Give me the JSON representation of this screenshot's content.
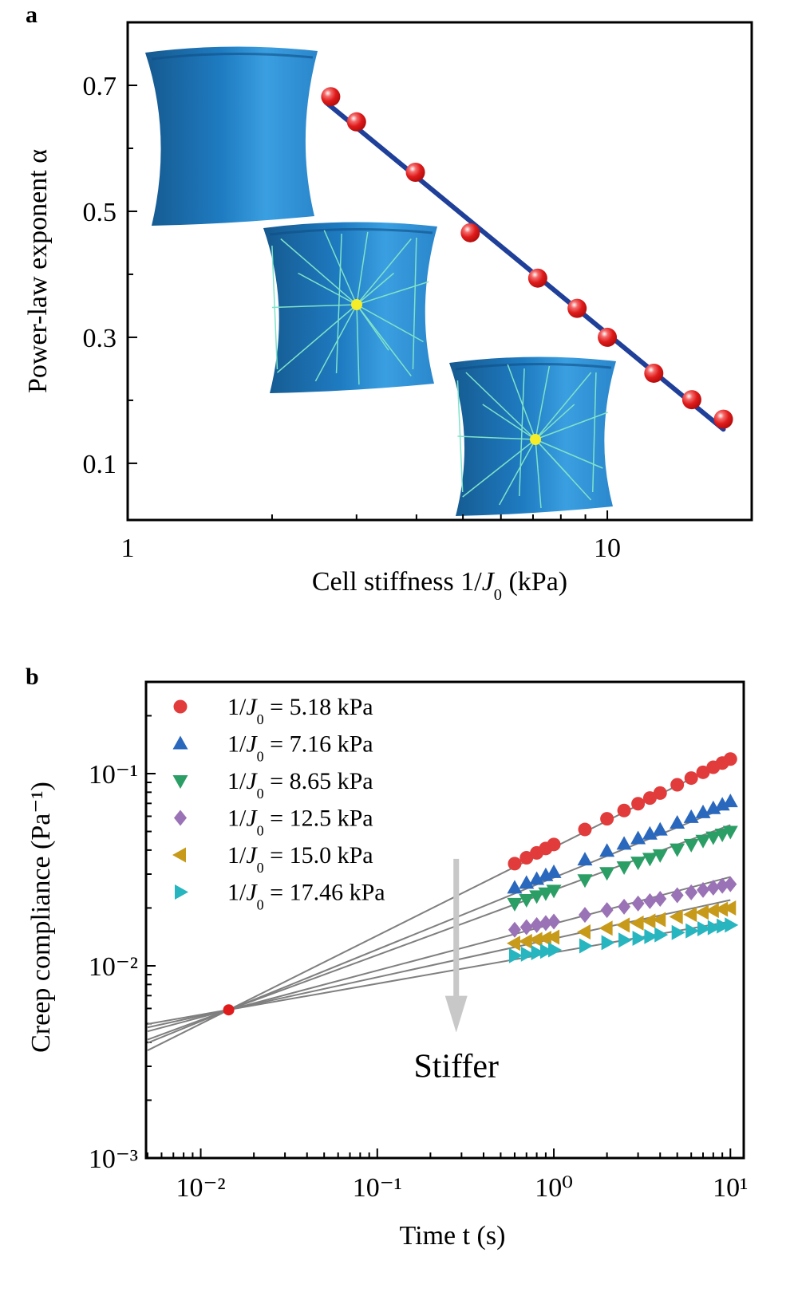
{
  "panels": {
    "a": "a",
    "b": "b"
  },
  "chart_data": [
    {
      "type": "scatter",
      "panel": "a",
      "xlabel": "Cell stiffness 1/J0 (kPa)",
      "ylabel": "Power-law exponent α",
      "xscale": "log",
      "xlim": [
        1,
        20
      ],
      "ylim": [
        0.01,
        0.8
      ],
      "x_ticks": [
        {
          "value": 1,
          "label": "1"
        },
        {
          "value": 10,
          "label": "10"
        }
      ],
      "y_ticks": [
        {
          "value": 0.1,
          "label": "0.1"
        },
        {
          "value": 0.3,
          "label": "0.3"
        },
        {
          "value": 0.5,
          "label": "0.5"
        },
        {
          "value": 0.7,
          "label": "0.7"
        }
      ],
      "grid": false,
      "series": [
        {
          "x": [
            2.65,
            3.0,
            3.98,
            5.18,
            7.16,
            8.65,
            10.0,
            12.5,
            15.0,
            17.46
          ],
          "y": [
            0.682,
            0.642,
            0.562,
            0.466,
            0.394,
            0.346,
            0.3,
            0.243,
            0.201,
            0.17
          ],
          "color": "#e01b1b",
          "marker": "sphere"
        }
      ],
      "fit_line": {
        "x": [
          2.59,
          17.46
        ],
        "y": [
          0.673,
          0.154
        ],
        "color": "#1f3f99"
      },
      "insets": [
        "cell-soft-icon",
        "cell-medium-with-fibers-icon",
        "cell-stiff-with-fibers-icon"
      ]
    },
    {
      "type": "scatter",
      "panel": "b",
      "xlabel": "Time t (s)",
      "ylabel": "Creep compliance (Pa⁻¹)",
      "xscale": "log",
      "yscale": "log",
      "xlim": [
        0.0049,
        11.9
      ],
      "ylim": [
        0.001,
        0.3
      ],
      "x_ticks": [
        {
          "value": 0.01,
          "label": "10⁻²"
        },
        {
          "value": 0.1,
          "label": "10⁻¹"
        },
        {
          "value": 1,
          "label": "10⁰"
        },
        {
          "value": 10,
          "label": "10¹"
        }
      ],
      "y_ticks": [
        {
          "value": 0.001,
          "label": "10⁻³"
        },
        {
          "value": 0.01,
          "label": "10⁻²"
        },
        {
          "value": 0.1,
          "label": "10⁻¹"
        }
      ],
      "grid": false,
      "legend_position": "top-left",
      "x": [
        0.6,
        0.7,
        0.8,
        0.9,
        1,
        1.5,
        2,
        2.5,
        3,
        3.5,
        4,
        5,
        6,
        7,
        8,
        9,
        10
      ],
      "series": [
        {
          "name": "1/J0 = 5.18 kPa",
          "marker": "circle",
          "color": "#e23b3b",
          "values": [
            0.034,
            0.0365,
            0.0387,
            0.0408,
            0.0428,
            0.0512,
            0.0582,
            0.0643,
            0.0697,
            0.0746,
            0.0792,
            0.0875,
            0.0948,
            0.1016,
            0.1079,
            0.1135,
            0.119
          ],
          "fit": {
            "t": [
              0.005,
              10
            ],
            "J": [
              0.00363,
              0.119
            ]
          }
        },
        {
          "name": "1/J0 = 7.16 kPa",
          "marker": "triangle-up",
          "color": "#2a68bd",
          "values": [
            0.0254,
            0.0269,
            0.0282,
            0.0295,
            0.0306,
            0.0356,
            0.0395,
            0.043,
            0.0459,
            0.0485,
            0.0509,
            0.0553,
            0.0592,
            0.0627,
            0.0658,
            0.0687,
            0.0715
          ],
          "fit": {
            "t": [
              0.005,
              10
            ],
            "J": [
              0.00397,
              0.068
            ]
          }
        },
        {
          "name": "1/J0 = 8.65 kPa",
          "marker": "triangle-down",
          "color": "#2b9e66",
          "values": [
            0.0211,
            0.0221,
            0.0231,
            0.0239,
            0.0247,
            0.028,
            0.0305,
            0.0327,
            0.0346,
            0.0362,
            0.0378,
            0.0405,
            0.0428,
            0.0449,
            0.0467,
            0.0484,
            0.05
          ],
          "fit": {
            "t": [
              0.005,
              10
            ],
            "J": [
              0.00413,
              0.054
            ]
          }
        },
        {
          "name": "1/J0 = 12.5 kPa",
          "marker": "diamond",
          "color": "#9a72b6",
          "values": [
            0.0154,
            0.0159,
            0.0163,
            0.0167,
            0.017,
            0.0184,
            0.0195,
            0.0203,
            0.0211,
            0.0217,
            0.0223,
            0.0233,
            0.0241,
            0.0248,
            0.0255,
            0.0261,
            0.0266
          ],
          "fit": {
            "t": [
              0.005,
              10
            ],
            "J": [
              0.00456,
              0.029
            ]
          }
        },
        {
          "name": "1/J0 = 15.0 kPa",
          "marker": "triangle-left",
          "color": "#c79a1a",
          "values": [
            0.0131,
            0.0134,
            0.0137,
            0.0139,
            0.0141,
            0.015,
            0.0157,
            0.0163,
            0.0167,
            0.0171,
            0.0174,
            0.018,
            0.0185,
            0.019,
            0.0194,
            0.0197,
            0.02
          ],
          "fit": {
            "t": [
              0.005,
              10
            ],
            "J": [
              0.00478,
              0.022
            ]
          }
        },
        {
          "name": "1/J0 = 17.46 kPa",
          "marker": "triangle-right",
          "color": "#27b6bf",
          "values": [
            0.0113,
            0.0115,
            0.0117,
            0.0119,
            0.0121,
            0.0127,
            0.0132,
            0.0136,
            0.0139,
            0.0142,
            0.0145,
            0.0149,
            0.0152,
            0.0156,
            0.0158,
            0.0161,
            0.0163
          ],
          "fit": {
            "t": [
              0.005,
              10
            ],
            "J": [
              0.00498,
              0.017
            ]
          }
        }
      ],
      "crossing_point": {
        "t": 0.0144,
        "J": 0.0059,
        "color": "#e01b1b"
      },
      "annotation": {
        "text": "Stiffer",
        "arrow_direction": "down",
        "arrow_color": "#c8c8c8",
        "t": 0.28,
        "J_from": 0.036,
        "J_to": 0.0045
      }
    }
  ]
}
